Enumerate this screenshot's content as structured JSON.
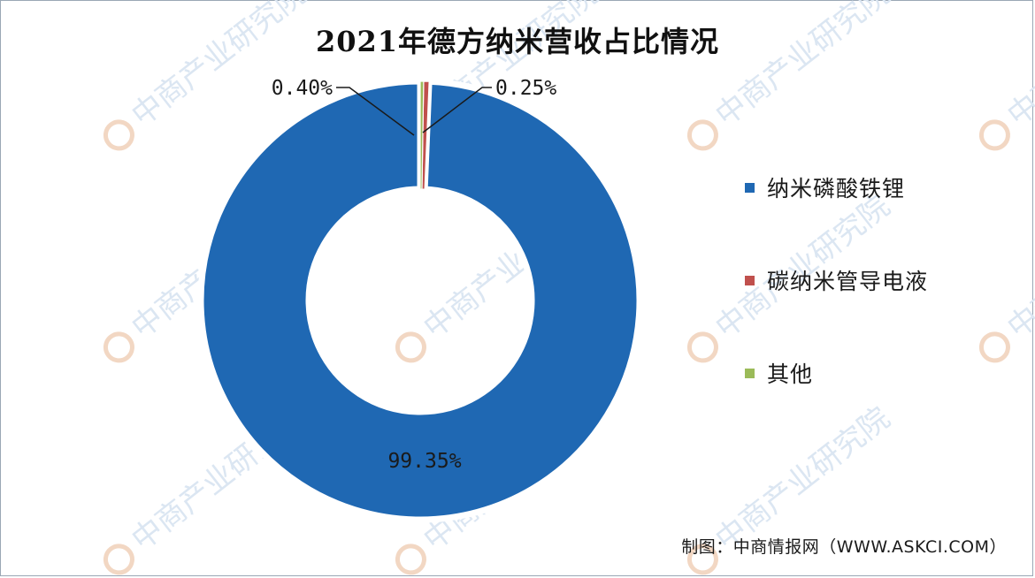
{
  "chart_data": {
    "type": "pie",
    "variant": "donut",
    "title": "2021年德方纳米营收占比情况",
    "categories": [
      "纳米磷酸铁锂",
      "碳纳米管导电液",
      "其他"
    ],
    "values": [
      99.35,
      0.4,
      0.25
    ],
    "data_labels": [
      "99.35%",
      "0.40%",
      "0.25%"
    ],
    "colors": [
      "#1f68b3",
      "#c0504d",
      "#9bbb59"
    ],
    "legend_position": "right"
  },
  "source_note": "制图：中商情报网（WWW.ASKCI.COM）",
  "watermark_text": "中商产业研究院"
}
